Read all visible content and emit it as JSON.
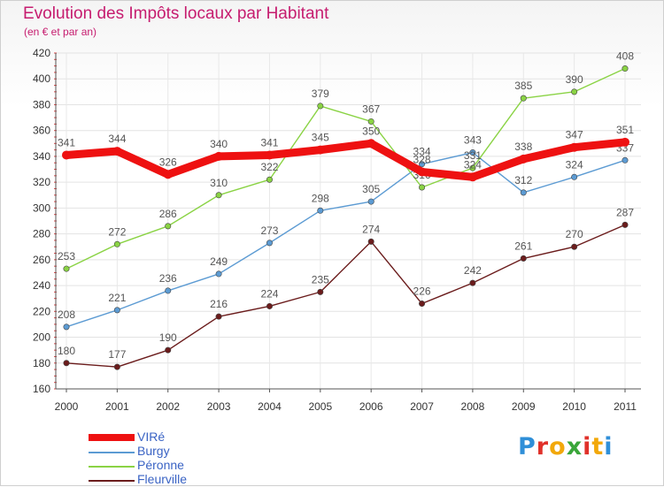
{
  "header": {
    "title": "Evolution des Impôts locaux par Habitant",
    "subtitle": "(en € et par an)"
  },
  "logo": {
    "letters": [
      "P",
      "r",
      "o",
      "x",
      "i",
      "t",
      "i"
    ],
    "colors": [
      "#2f8fd8",
      "#e0312a",
      "#f2a80a",
      "#3aa63a",
      "#e0312a",
      "#f2a80a",
      "#2f8fd8"
    ]
  },
  "chart_data": {
    "type": "line",
    "title": "Evolution des Impôts locaux par Habitant",
    "subtitle": "(en € et par an)",
    "xlabel": "",
    "ylabel": "",
    "x": [
      "2000",
      "2001",
      "2002",
      "2003",
      "2004",
      "2005",
      "2006",
      "2007",
      "2008",
      "2009",
      "2010",
      "2011"
    ],
    "ylim": [
      160,
      420
    ],
    "yticks": [
      160,
      180,
      200,
      220,
      240,
      260,
      280,
      300,
      320,
      340,
      360,
      380,
      400,
      420
    ],
    "grid": true,
    "legend_position": "bottom-left",
    "series": [
      {
        "name": "VIRé",
        "color": "#ee1111",
        "emphasis": true,
        "values": [
          341,
          344,
          326,
          340,
          341,
          345,
          350,
          328,
          324,
          338,
          347,
          351
        ]
      },
      {
        "name": "Burgy",
        "color": "#5c9bd3",
        "emphasis": false,
        "values": [
          208,
          221,
          236,
          249,
          273,
          298,
          305,
          334,
          343,
          312,
          324,
          337
        ]
      },
      {
        "name": "Péronne",
        "color": "#8ad344",
        "emphasis": false,
        "values": [
          253,
          272,
          286,
          310,
          322,
          379,
          367,
          316,
          331,
          385,
          390,
          408
        ]
      },
      {
        "name": "Fleurville",
        "color": "#6b1c1c",
        "emphasis": false,
        "values": [
          180,
          177,
          190,
          216,
          224,
          235,
          274,
          226,
          242,
          261,
          270,
          287
        ]
      }
    ]
  }
}
